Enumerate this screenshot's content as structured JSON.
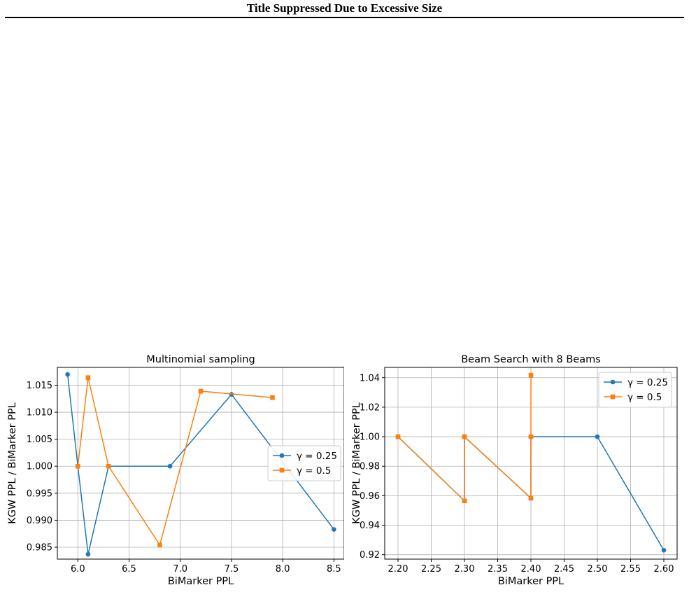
{
  "page": {
    "header_title": "Title Suppressed Due to Excessive Size"
  },
  "colors": {
    "series_a": "#1f77b4",
    "series_b": "#ff7f0e",
    "grid": "#b0b0b0"
  },
  "chart_data": [
    {
      "type": "line",
      "title": "Multinomial sampling",
      "xlabel": "BiMarker PPL",
      "ylabel": "KGW PPL / BiMarker PPL",
      "xlim": [
        5.8,
        8.6
      ],
      "ylim": [
        0.9828,
        1.0183
      ],
      "xticks": [
        6.0,
        6.5,
        7.0,
        7.5,
        8.0,
        8.5
      ],
      "xtick_labels": [
        "6.0",
        "6.5",
        "7.0",
        "7.5",
        "8.0",
        "8.5"
      ],
      "yticks": [
        0.985,
        0.99,
        0.995,
        1.0,
        1.005,
        1.01,
        1.015
      ],
      "ytick_labels": [
        "0.985",
        "0.990",
        "0.995",
        "1.000",
        "1.005",
        "1.010",
        "1.015"
      ],
      "grid": true,
      "legend_position": "center-right",
      "series": [
        {
          "name": "γ = 0.25",
          "marker": "circle",
          "x": [
            5.9,
            6.0,
            6.1,
            6.3,
            6.9,
            7.5,
            8.5
          ],
          "y": [
            1.017,
            1.0,
            0.9837,
            1.0,
            1.0,
            1.0133,
            0.9883
          ]
        },
        {
          "name": "γ = 0.5",
          "marker": "square",
          "x": [
            6.0,
            6.1,
            6.3,
            6.8,
            7.2,
            7.9
          ],
          "y": [
            1.0,
            1.0164,
            1.0,
            0.9854,
            1.0139,
            1.0127
          ]
        }
      ]
    },
    {
      "type": "line",
      "title": "Beam Search with 8 Beams",
      "xlabel": "BiMarker PPL",
      "ylabel": "KGW PPL / BiMarker PPL",
      "xlim": [
        2.18,
        2.62
      ],
      "ylim": [
        0.917,
        1.047
      ],
      "xticks": [
        2.2,
        2.25,
        2.3,
        2.35,
        2.4,
        2.45,
        2.5,
        2.55,
        2.6
      ],
      "xtick_labels": [
        "2.20",
        "2.25",
        "2.30",
        "2.35",
        "2.40",
        "2.45",
        "2.50",
        "2.55",
        "2.60"
      ],
      "yticks": [
        0.92,
        0.94,
        0.96,
        0.98,
        1.0,
        1.02,
        1.04
      ],
      "ytick_labels": [
        "0.92",
        "0.94",
        "0.96",
        "0.98",
        "1.00",
        "1.02",
        "1.04"
      ],
      "grid": true,
      "legend_position": "top-right",
      "series": [
        {
          "name": "γ = 0.25",
          "marker": "circle",
          "x": [
            2.2,
            2.3,
            2.3,
            2.3,
            2.4,
            2.4,
            2.4,
            2.5,
            2.6
          ],
          "y": [
            1.0,
            0.9565,
            1.0,
            1.0,
            0.9583,
            1.0,
            1.0,
            1.0,
            0.923
          ]
        },
        {
          "name": "γ = 0.5",
          "marker": "square",
          "x": [
            2.2,
            2.3,
            2.3,
            2.4,
            2.4,
            2.4
          ],
          "y": [
            1.0,
            0.9565,
            1.0,
            0.9583,
            1.0,
            1.0417
          ]
        }
      ]
    }
  ]
}
